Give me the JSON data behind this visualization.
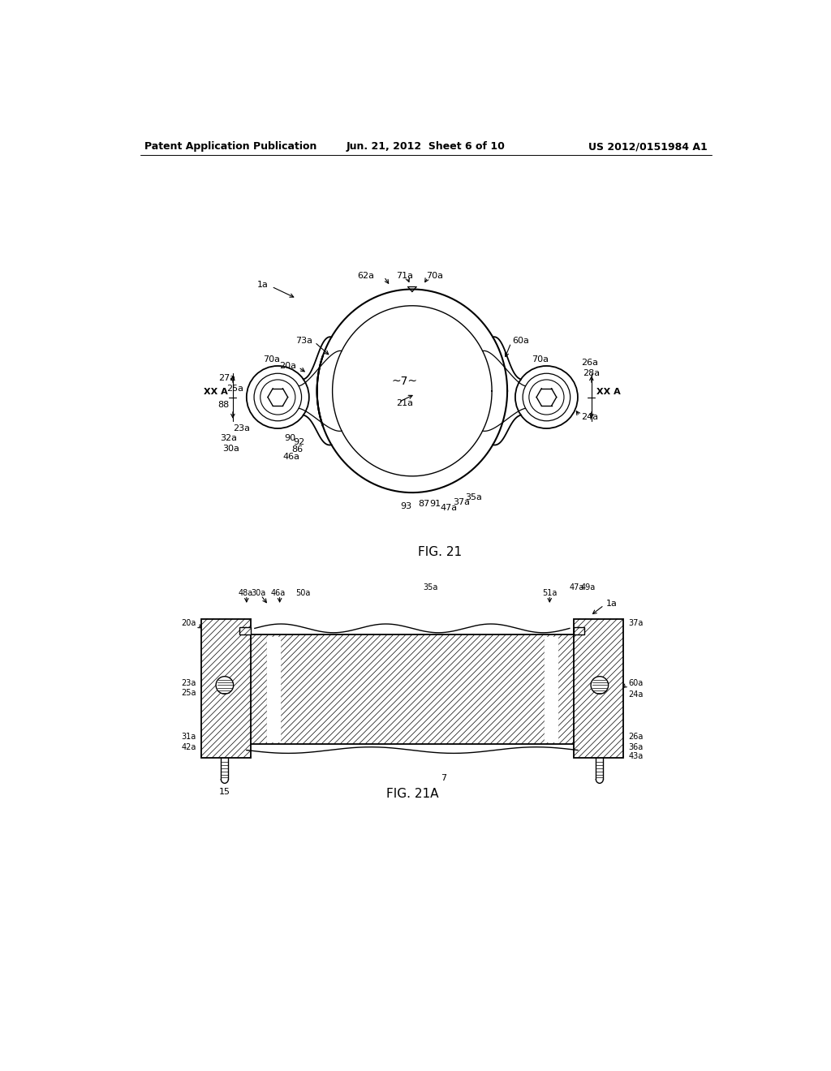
{
  "bg_color": "#ffffff",
  "header_left": "Patent Application Publication",
  "header_mid": "Jun. 21, 2012  Sheet 6 of 10",
  "header_right": "US 2012/0151984 A1",
  "fig21_label": "FIG. 21",
  "fig21a_label": "FIG. 21A"
}
